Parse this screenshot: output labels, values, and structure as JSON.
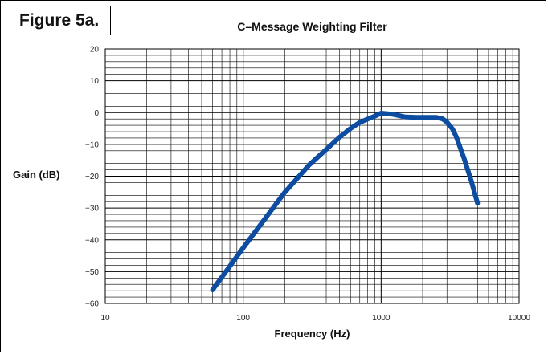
{
  "figure_label": "Figure 5a.",
  "chart_data": {
    "type": "line",
    "title": "C–Message Weighting Filter",
    "xlabel": "Frequency (Hz)",
    "ylabel": "Gain (dB)",
    "xscale": "log",
    "xlim": [
      10,
      10000
    ],
    "ylim": [
      -60,
      20
    ],
    "grid": true,
    "x_ticks": [
      10,
      100,
      1000,
      10000
    ],
    "x_tick_labels": [
      "10",
      "100",
      "1000",
      "10000"
    ],
    "y_ticks": [
      20,
      10,
      0,
      -10,
      -20,
      -30,
      -40,
      -50,
      -60
    ],
    "y_tick_labels": [
      "20",
      "10",
      "0",
      "−10",
      "−20",
      "−30",
      "−40",
      "−50",
      "−60"
    ],
    "series": [
      {
        "color": "#0c4da2",
        "x": [
          60,
          100,
          200,
          300,
          400,
          500,
          600,
          700,
          800,
          900,
          1000,
          1200,
          1300,
          1500,
          1800,
          2000,
          2500,
          2800,
          3000,
          3300,
          3500,
          4000,
          4500,
          5000
        ],
        "y": [
          -55.7,
          -42.5,
          -25.1,
          -16.5,
          -11.6,
          -7.7,
          -5.0,
          -3.1,
          -2.0,
          -1.1,
          -0.2,
          -0.5,
          -0.8,
          -1.4,
          -1.5,
          -1.5,
          -1.5,
          -2.0,
          -3.0,
          -5.2,
          -7.5,
          -14.5,
          -21.5,
          -28.5
        ]
      }
    ]
  }
}
